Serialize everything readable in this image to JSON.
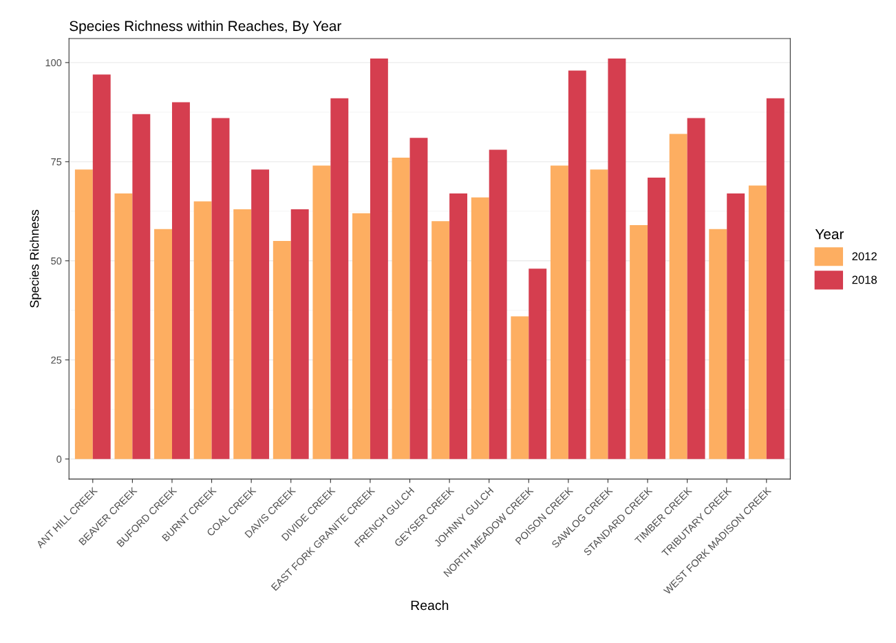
{
  "chart_data": {
    "type": "bar",
    "title": "Species Richness within Reaches, By Year",
    "xlabel": "Reach",
    "ylabel": "Species Richness",
    "legend_title": "Year",
    "categories": [
      "ANT HILL CREEK",
      "BEAVER CREEK",
      "BUFORD CREEK",
      "BURNT CREEK",
      "COAL CREEK",
      "DAVIS CREEK",
      "DIVIDE CREEK",
      "EAST FORK GRANITE CREEK",
      "FRENCH GULCH",
      "GEYSER CREEK",
      "JOHNNY GULCH",
      "NORTH MEADOW CREEK",
      "POISON CREEK",
      "SAWLOG CREEK",
      "STANDARD CREEK",
      "TIMBER CREEK",
      "TRIBUTARY CREEK",
      "WEST FORK MADISON CREEK"
    ],
    "series": [
      {
        "name": "2012",
        "color": "#fdae61",
        "values": [
          73,
          67,
          58,
          65,
          63,
          55,
          74,
          62,
          76,
          60,
          66,
          36,
          74,
          73,
          59,
          82,
          58,
          69
        ]
      },
      {
        "name": "2018",
        "color": "#d53e4f",
        "values": [
          97,
          87,
          90,
          86,
          73,
          63,
          91,
          101,
          81,
          67,
          78,
          48,
          98,
          101,
          71,
          86,
          67,
          91
        ]
      }
    ],
    "ylim": [
      -5.05,
      106.05
    ],
    "yticks": [
      0,
      25,
      50,
      75,
      100
    ],
    "grid": "y",
    "legend": "right"
  }
}
